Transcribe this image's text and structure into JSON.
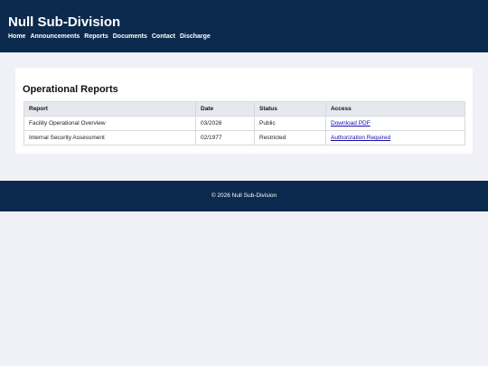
{
  "header": {
    "title": "Null Sub-Division",
    "nav": [
      "Home",
      "Announcements",
      "Reports",
      "Documents",
      "Contact",
      "Discharge"
    ]
  },
  "reports": {
    "heading": "Operational Reports",
    "columns": [
      "Report",
      "Date",
      "Status",
      "Access"
    ],
    "rows": [
      {
        "report": "Facility Operational Overview",
        "date": "03/2026",
        "status": "Public",
        "access": "Download PDF"
      },
      {
        "report": "Internal Security Assessment",
        "date": "02/1977",
        "status": "Restricted",
        "access": "Authorization Required"
      }
    ]
  },
  "footer": {
    "text": "© 2026 Null Sub-Division"
  },
  "colors": {
    "header_bg": "#0c2a4d",
    "page_bg": "#eff1f6",
    "link": "#1a0dab"
  }
}
